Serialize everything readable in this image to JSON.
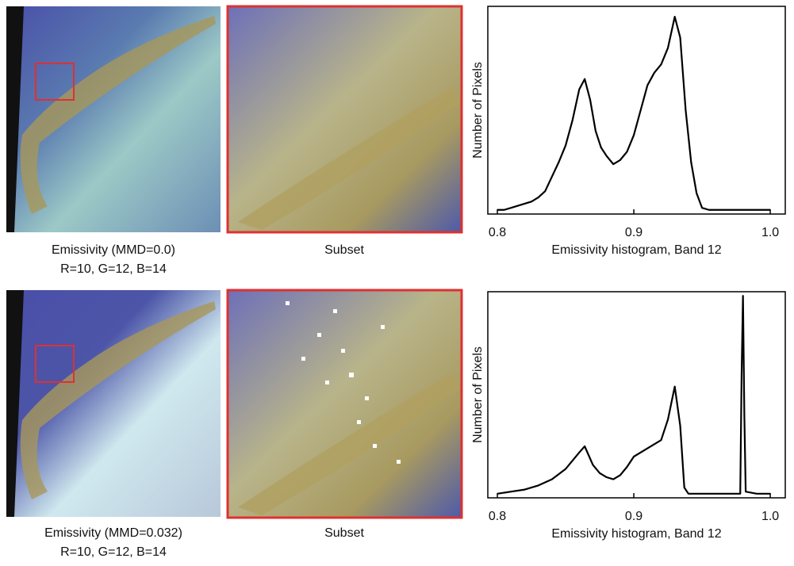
{
  "panels": [
    {
      "image_caption": [
        "Emissivity (MMD=0.0)",
        "R=10, G=12, B=14"
      ],
      "subset_caption": "Subset"
    },
    {
      "image_caption": [
        "Emissivity (MMD=0.032)",
        "R=10, G=12, B=14"
      ],
      "subset_caption": "Subset"
    }
  ],
  "chart_data": [
    {
      "type": "line",
      "xlabel": "Emissivity histogram, Band 12",
      "ylabel": "Number of Pixels",
      "color": "#000000",
      "x": [
        0.8,
        0.805,
        0.81,
        0.815,
        0.82,
        0.825,
        0.83,
        0.835,
        0.84,
        0.845,
        0.85,
        0.855,
        0.86,
        0.864,
        0.868,
        0.872,
        0.876,
        0.88,
        0.885,
        0.89,
        0.895,
        0.9,
        0.905,
        0.91,
        0.915,
        0.92,
        0.925,
        0.93,
        0.934,
        0.938,
        0.942,
        0.946,
        0.95,
        0.955,
        0.96,
        1.0
      ],
      "values": [
        2,
        2,
        3,
        4,
        5,
        6,
        8,
        11,
        18,
        25,
        33,
        45,
        60,
        65,
        55,
        40,
        32,
        28,
        24,
        26,
        30,
        38,
        50,
        62,
        68,
        72,
        80,
        95,
        85,
        50,
        25,
        10,
        3,
        2,
        2,
        2
      ],
      "xlim": [
        0.793,
        1.011
      ],
      "ylim": [
        0,
        100
      ],
      "xticks": [
        0.8,
        0.9,
        {
          "value": 1.0,
          "label": "1.0"
        }
      ]
    },
    {
      "type": "line",
      "xlabel": "Emissivity histogram, Band 12",
      "ylabel": "Number of Pixels",
      "color": "#000000",
      "x": [
        0.8,
        0.81,
        0.82,
        0.83,
        0.84,
        0.85,
        0.86,
        0.864,
        0.87,
        0.875,
        0.88,
        0.885,
        0.89,
        0.895,
        0.9,
        0.91,
        0.92,
        0.925,
        0.93,
        0.934,
        0.937,
        0.94,
        0.95,
        0.97,
        0.978,
        0.979,
        0.98,
        0.981,
        0.982,
        0.99,
        1.0
      ],
      "values": [
        2,
        3,
        4,
        6,
        9,
        14,
        22,
        25,
        16,
        12,
        10,
        9,
        11,
        15,
        20,
        24,
        28,
        38,
        54,
        35,
        5,
        2,
        2,
        2,
        2,
        60,
        98,
        40,
        3,
        2,
        2
      ],
      "xlim": [
        0.793,
        1.011
      ],
      "ylim": [
        0,
        100
      ],
      "xticks": [
        0.8,
        0.9,
        {
          "value": 1.0,
          "label": "1.0"
        }
      ]
    }
  ]
}
